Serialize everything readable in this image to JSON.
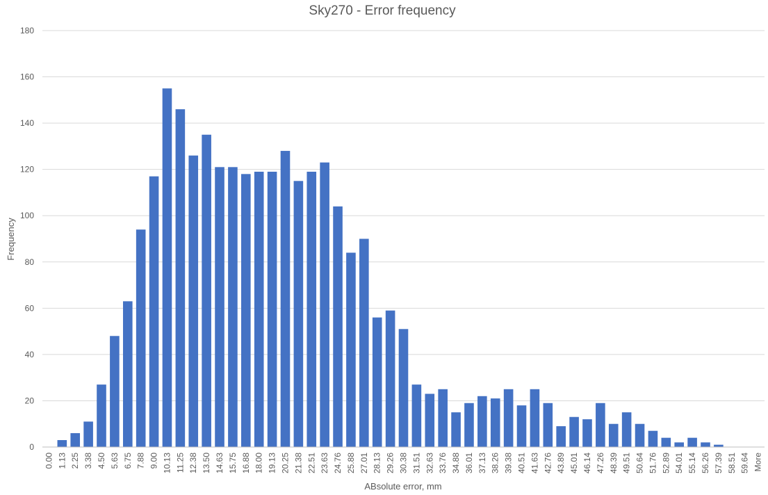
{
  "chart_data": {
    "type": "bar",
    "title": "Sky270 - Error frequency",
    "xlabel": "ABsolute error, mm",
    "ylabel": "Frequency",
    "ylim": [
      0,
      180
    ],
    "yticks": [
      0,
      20,
      40,
      60,
      80,
      100,
      120,
      140,
      160,
      180
    ],
    "grid": true,
    "bar_color": "#4472c4",
    "categories": [
      "0.00",
      "1.13",
      "2.25",
      "3.38",
      "4.50",
      "5.63",
      "6.75",
      "7.88",
      "9.00",
      "10.13",
      "11.25",
      "12.38",
      "13.50",
      "14.63",
      "15.75",
      "16.88",
      "18.00",
      "19.13",
      "20.25",
      "21.38",
      "22.51",
      "23.63",
      "24.76",
      "25.88",
      "27.01",
      "28.13",
      "29.26",
      "30.38",
      "31.51",
      "32.63",
      "33.76",
      "34.88",
      "36.01",
      "37.13",
      "38.26",
      "39.38",
      "40.51",
      "41.63",
      "42.76",
      "43.89",
      "45.01",
      "46.14",
      "47.26",
      "48.39",
      "49.51",
      "50.64",
      "51.76",
      "52.89",
      "54.01",
      "55.14",
      "56.26",
      "57.39",
      "58.51",
      "59.64",
      "More"
    ],
    "values": [
      0,
      3,
      6,
      11,
      27,
      48,
      63,
      94,
      117,
      155,
      146,
      126,
      135,
      121,
      121,
      118,
      119,
      119,
      128,
      115,
      119,
      123,
      104,
      84,
      90,
      56,
      59,
      51,
      27,
      23,
      25,
      15,
      19,
      22,
      21,
      25,
      18,
      25,
      19,
      9,
      13,
      12,
      19,
      10,
      15,
      10,
      7,
      4,
      2,
      4,
      2,
      1,
      0,
      0,
      0
    ]
  }
}
